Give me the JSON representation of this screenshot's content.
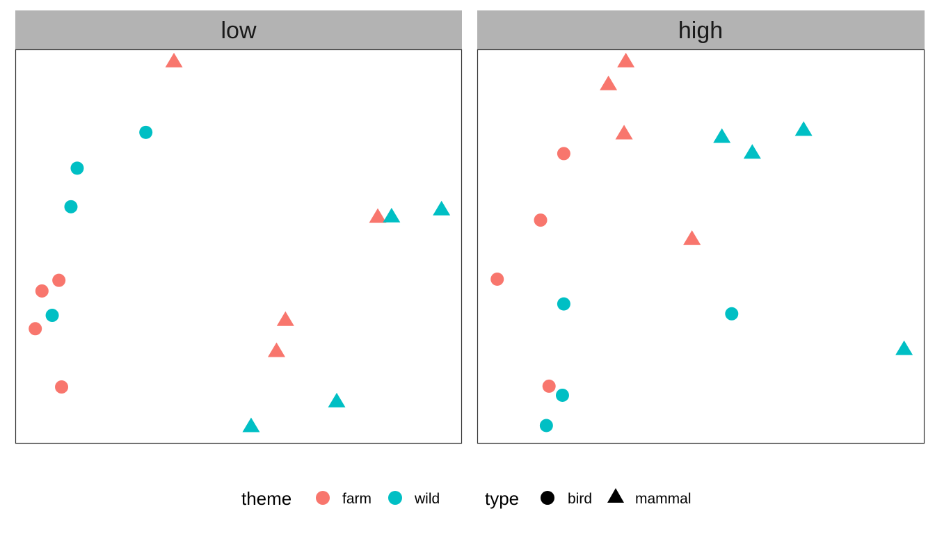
{
  "chart_data": {
    "type": "scatter",
    "facet_by": "level",
    "color_by": "theme",
    "shape_by": "type",
    "xlim": [
      0,
      10
    ],
    "ylim": [
      0,
      10
    ],
    "axes_visible": false,
    "grid": false,
    "legend_position": "bottom",
    "colors": {
      "farm": "#F8766D",
      "wild": "#00BFC4"
    },
    "shapes": {
      "bird": "circle",
      "mammal": "triangle"
    },
    "legend": {
      "theme": {
        "title": "theme",
        "entries": [
          "farm",
          "wild"
        ]
      },
      "type": {
        "title": "type",
        "entries": [
          "bird",
          "mammal"
        ]
      }
    },
    "panels": [
      {
        "label": "low",
        "points": [
          {
            "x": 3.55,
            "y": 9.7,
            "theme": "farm",
            "type": "mammal"
          },
          {
            "x": 2.92,
            "y": 7.9,
            "theme": "wild",
            "type": "bird"
          },
          {
            "x": 1.38,
            "y": 6.99,
            "theme": "wild",
            "type": "bird"
          },
          {
            "x": 1.24,
            "y": 6.01,
            "theme": "wild",
            "type": "bird"
          },
          {
            "x": 8.12,
            "y": 5.75,
            "theme": "farm",
            "type": "mammal"
          },
          {
            "x": 8.43,
            "y": 5.76,
            "theme": "wild",
            "type": "mammal"
          },
          {
            "x": 9.55,
            "y": 5.94,
            "theme": "wild",
            "type": "mammal"
          },
          {
            "x": 0.97,
            "y": 4.14,
            "theme": "farm",
            "type": "bird"
          },
          {
            "x": 0.59,
            "y": 3.87,
            "theme": "farm",
            "type": "bird"
          },
          {
            "x": 0.82,
            "y": 3.25,
            "theme": "wild",
            "type": "bird"
          },
          {
            "x": 0.44,
            "y": 2.91,
            "theme": "farm",
            "type": "bird"
          },
          {
            "x": 6.05,
            "y": 3.13,
            "theme": "farm",
            "type": "mammal"
          },
          {
            "x": 5.85,
            "y": 2.34,
            "theme": "farm",
            "type": "mammal"
          },
          {
            "x": 1.03,
            "y": 1.43,
            "theme": "farm",
            "type": "bird"
          },
          {
            "x": 7.2,
            "y": 1.06,
            "theme": "wild",
            "type": "mammal"
          },
          {
            "x": 5.28,
            "y": 0.43,
            "theme": "wild",
            "type": "mammal"
          }
        ]
      },
      {
        "label": "high",
        "points": [
          {
            "x": 3.32,
            "y": 9.7,
            "theme": "farm",
            "type": "mammal"
          },
          {
            "x": 2.93,
            "y": 9.12,
            "theme": "farm",
            "type": "mammal"
          },
          {
            "x": 3.28,
            "y": 7.87,
            "theme": "farm",
            "type": "mammal"
          },
          {
            "x": 5.47,
            "y": 7.78,
            "theme": "wild",
            "type": "mammal"
          },
          {
            "x": 6.15,
            "y": 7.38,
            "theme": "wild",
            "type": "mammal"
          },
          {
            "x": 7.3,
            "y": 7.96,
            "theme": "wild",
            "type": "mammal"
          },
          {
            "x": 1.93,
            "y": 7.36,
            "theme": "farm",
            "type": "bird"
          },
          {
            "x": 1.41,
            "y": 5.67,
            "theme": "farm",
            "type": "bird"
          },
          {
            "x": 4.8,
            "y": 5.19,
            "theme": "farm",
            "type": "mammal"
          },
          {
            "x": 0.44,
            "y": 4.17,
            "theme": "farm",
            "type": "bird"
          },
          {
            "x": 1.93,
            "y": 3.54,
            "theme": "wild",
            "type": "bird"
          },
          {
            "x": 5.69,
            "y": 3.29,
            "theme": "wild",
            "type": "bird"
          },
          {
            "x": 9.55,
            "y": 2.39,
            "theme": "wild",
            "type": "mammal"
          },
          {
            "x": 1.6,
            "y": 1.45,
            "theme": "farm",
            "type": "bird"
          },
          {
            "x": 1.9,
            "y": 1.22,
            "theme": "wild",
            "type": "bird"
          },
          {
            "x": 1.54,
            "y": 0.45,
            "theme": "wild",
            "type": "bird"
          }
        ]
      }
    ]
  }
}
